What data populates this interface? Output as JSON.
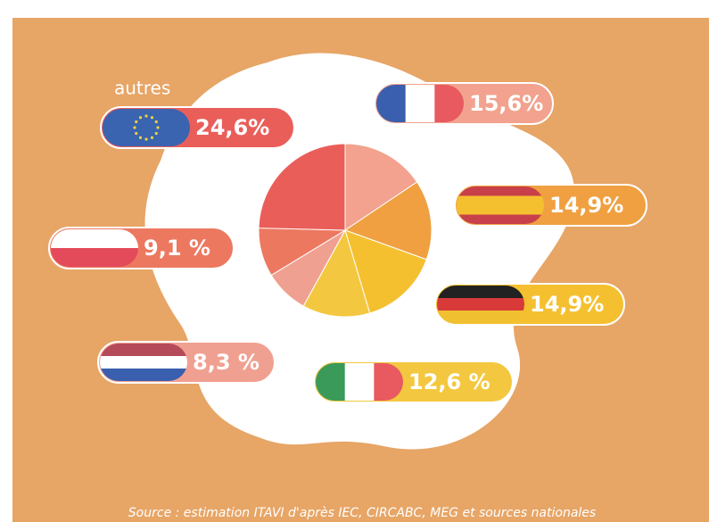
{
  "chart_data": {
    "type": "pie",
    "categories": [
      null,
      null,
      null,
      null,
      null,
      null,
      "autres"
    ],
    "values": [
      15.6,
      14.9,
      14.9,
      12.6,
      8.3,
      9.1,
      24.6
    ],
    "value_labels": [
      "15,6%",
      "14,9%",
      "14,9%",
      "12,6 %",
      "8,3 %",
      "9,1 %",
      "24,6%"
    ],
    "colors": [
      "#f2a28e",
      "#f0a040",
      "#f5c030",
      "#f3c840",
      "#f0a090",
      "#ec7860",
      "#ea5e5a"
    ],
    "source": "Source : estimation ITAVI d'après IEC, CIRCABC, MEG et sources nationales"
  }
}
